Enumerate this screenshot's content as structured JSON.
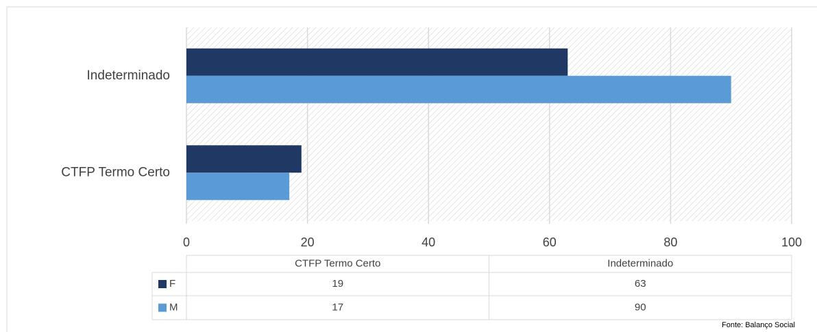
{
  "chart_data": {
    "type": "barh",
    "categories": [
      "CTFP Termo Certo",
      "Indeterminado"
    ],
    "series": [
      {
        "name": "F",
        "color": "#1f3864",
        "values": [
          19,
          63
        ]
      },
      {
        "name": "M",
        "color": "#5b9bd5",
        "values": [
          17,
          90
        ]
      }
    ],
    "xlim": [
      0,
      100
    ],
    "xticks": [
      0,
      20,
      40,
      60,
      80,
      100
    ],
    "grid": true,
    "source": "Fonte: Balanço Social"
  }
}
